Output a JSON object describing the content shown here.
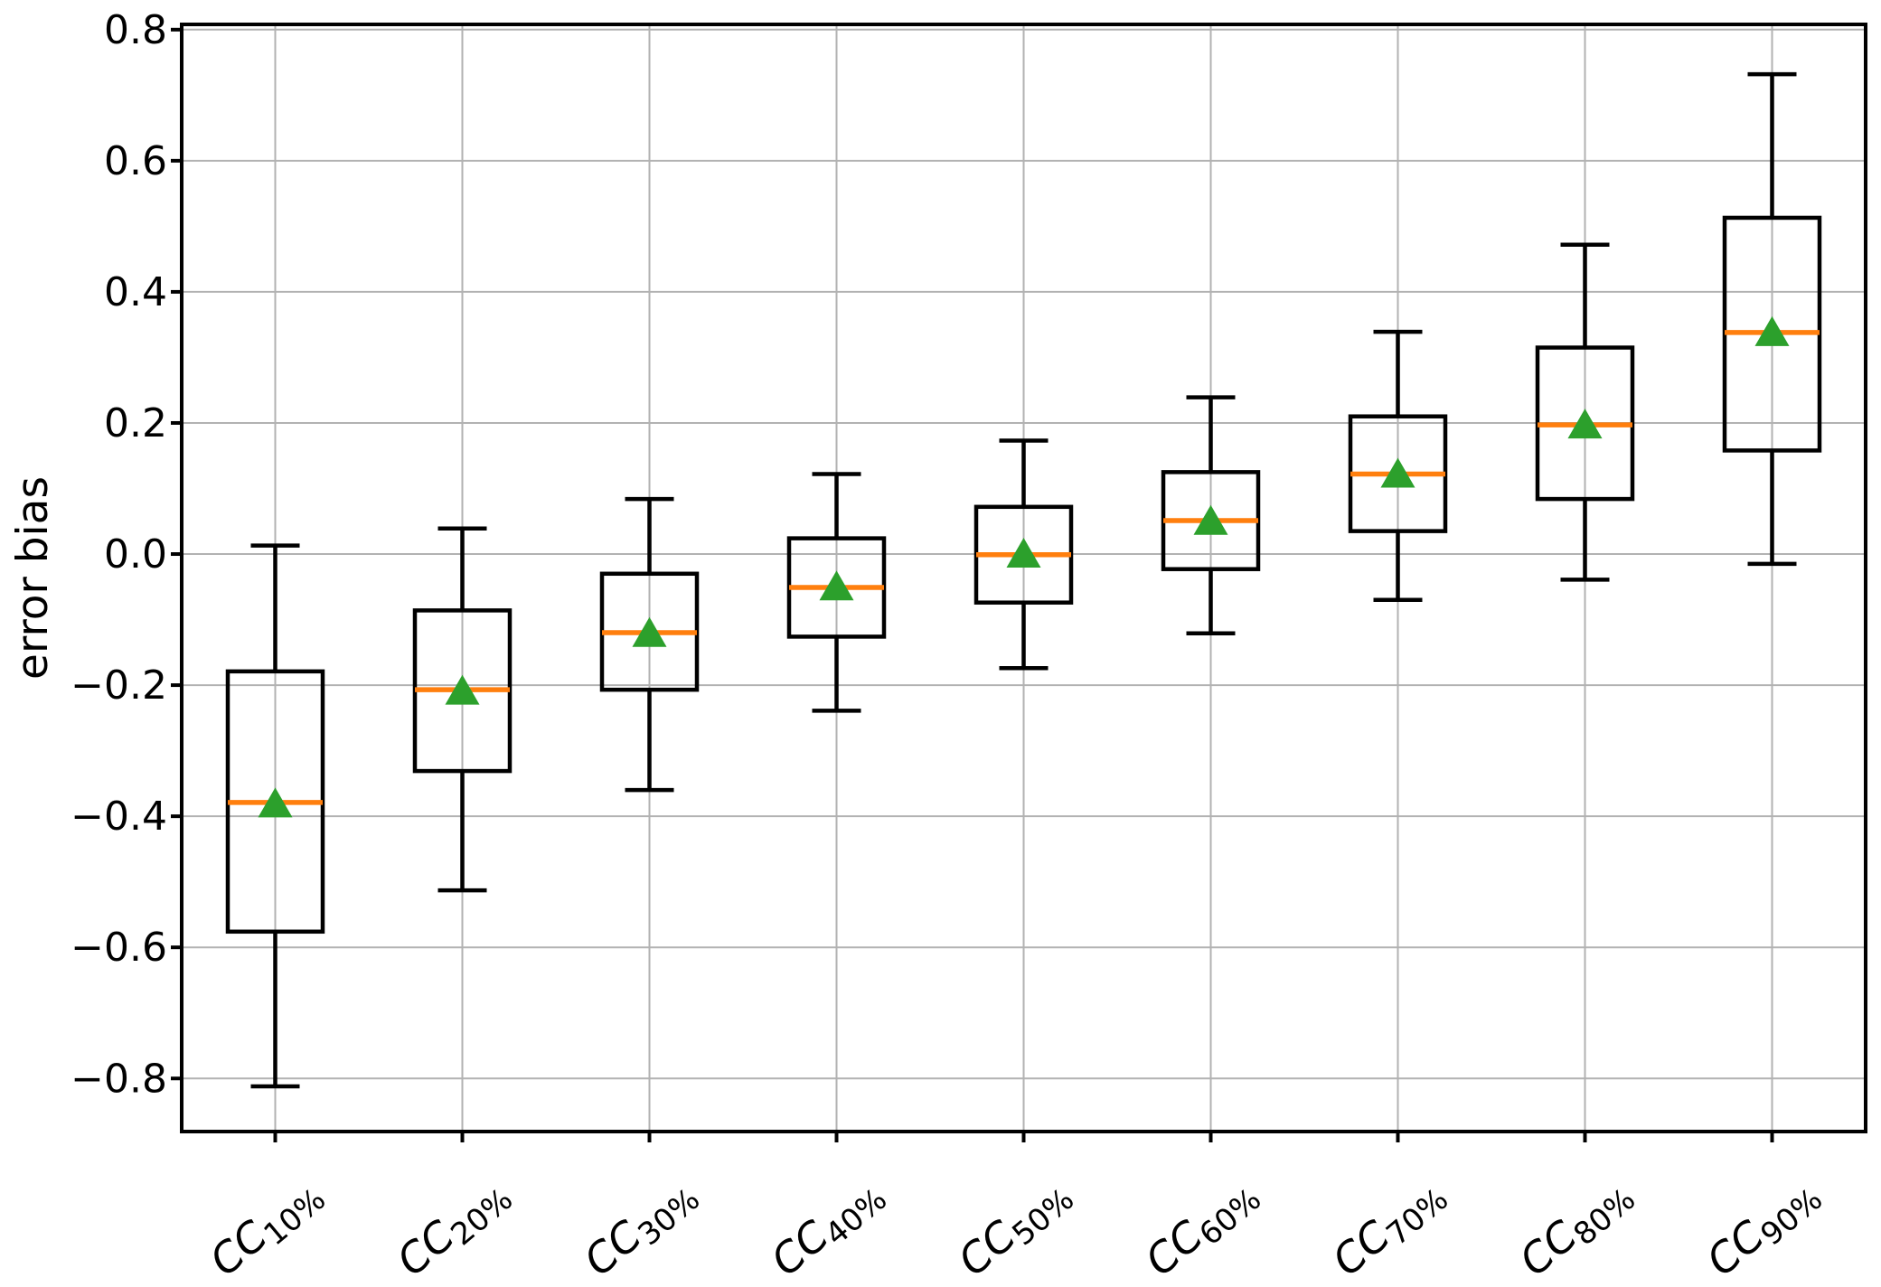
{
  "chart_data": {
    "type": "box",
    "title": "",
    "xlabel": "",
    "ylabel": "error bias",
    "grid": true,
    "legend": null,
    "ylim": [
      -0.881,
      0.808
    ],
    "yticks": [
      {
        "value": 0.8,
        "label": "0.8"
      },
      {
        "value": 0.6,
        "label": "0.6"
      },
      {
        "value": 0.4,
        "label": "0.4"
      },
      {
        "value": 0.2,
        "label": "0.2"
      },
      {
        "value": 0.0,
        "label": "0.0"
      },
      {
        "value": -0.2,
        "label": "−0.2"
      },
      {
        "value": -0.4,
        "label": "−0.4"
      },
      {
        "value": -0.6,
        "label": "−0.6"
      },
      {
        "value": -0.8,
        "label": "−0.8"
      }
    ],
    "categories": [
      {
        "base": "CC",
        "sub": "10%"
      },
      {
        "base": "CC",
        "sub": "20%"
      },
      {
        "base": "CC",
        "sub": "30%"
      },
      {
        "base": "CC",
        "sub": "40%"
      },
      {
        "base": "CC",
        "sub": "50%"
      },
      {
        "base": "CC",
        "sub": "60%"
      },
      {
        "base": "CC",
        "sub": "70%"
      },
      {
        "base": "CC",
        "sub": "80%"
      },
      {
        "base": "CC",
        "sub": "90%"
      }
    ],
    "boxes": [
      {
        "label": "CC10%",
        "whislo": -0.812,
        "q1": -0.576,
        "med": -0.379,
        "mean": -0.381,
        "q3": -0.179,
        "whishi": 0.013
      },
      {
        "label": "CC20%",
        "whislo": -0.513,
        "q1": -0.331,
        "med": -0.207,
        "mean": -0.209,
        "q3": -0.086,
        "whishi": 0.039
      },
      {
        "label": "CC30%",
        "whislo": -0.36,
        "q1": -0.207,
        "med": -0.12,
        "mean": -0.121,
        "q3": -0.03,
        "whishi": 0.084
      },
      {
        "label": "CC40%",
        "whislo": -0.239,
        "q1": -0.126,
        "med": -0.051,
        "mean": -0.05,
        "q3": 0.024,
        "whishi": 0.122
      },
      {
        "label": "CC50%",
        "whislo": -0.174,
        "q1": -0.074,
        "med": -0.001,
        "mean": 0.0,
        "q3": 0.072,
        "whishi": 0.173
      },
      {
        "label": "CC60%",
        "whislo": -0.121,
        "q1": -0.023,
        "med": 0.051,
        "mean": 0.05,
        "q3": 0.125,
        "whishi": 0.239
      },
      {
        "label": "CC70%",
        "whislo": -0.07,
        "q1": 0.035,
        "med": 0.122,
        "mean": 0.122,
        "q3": 0.21,
        "whishi": 0.339
      },
      {
        "label": "CC80%",
        "whislo": -0.039,
        "q1": 0.084,
        "med": 0.197,
        "mean": 0.197,
        "q3": 0.315,
        "whishi": 0.472
      },
      {
        "label": "CC90%",
        "whislo": -0.015,
        "q1": 0.158,
        "med": 0.338,
        "mean": 0.338,
        "q3": 0.513,
        "whishi": 0.732
      }
    ],
    "colors": {
      "median": "#ff7f0e",
      "mean_marker": "#2ca02c",
      "box_line": "#000000",
      "grid": "#b2b2b2",
      "background": "#ffffff",
      "text": "#000000"
    }
  }
}
